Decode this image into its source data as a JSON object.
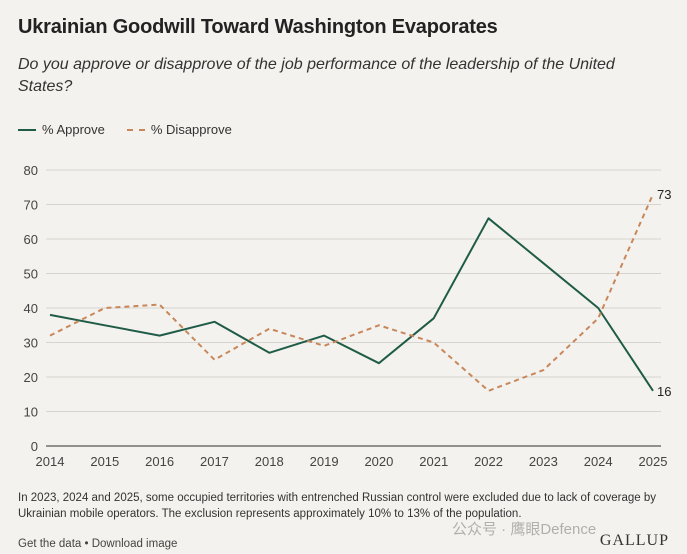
{
  "header": {
    "title": "Ukrainian Goodwill Toward Washington Evaporates",
    "subtitle": "Do you approve or disapprove of the job performance of the leadership of the United States?"
  },
  "legend": {
    "approve_label": "% Approve",
    "disapprove_label": "% Disapprove"
  },
  "chart_data": {
    "type": "line",
    "x": [
      "2014",
      "2015",
      "2016",
      "2017",
      "2018",
      "2019",
      "2020",
      "2021",
      "2022",
      "2023",
      "2024",
      "2025"
    ],
    "series": [
      {
        "name": "% Approve",
        "values": [
          38,
          35,
          32,
          36,
          27,
          32,
          24,
          37,
          66,
          53,
          40,
          16
        ],
        "color": "#1f5c48",
        "style": "solid"
      },
      {
        "name": "% Disapprove",
        "values": [
          32,
          40,
          41,
          25,
          34,
          29,
          35,
          30,
          16,
          22,
          37,
          73
        ],
        "color": "#c8875a",
        "style": "dashed"
      }
    ],
    "end_labels": [
      "16",
      "73"
    ],
    "ylim": [
      0,
      80
    ],
    "yticks": [
      0,
      10,
      20,
      30,
      40,
      50,
      60,
      70,
      80
    ],
    "grid": true,
    "legend_position": "top-left"
  },
  "footnote": "In 2023, 2024 and 2025, some occupied territories with entrenched Russian control were excluded due to lack of coverage by Ukrainian mobile operators. The exclusion represents approximately 10% to 13% of the population.",
  "links": {
    "get_data": "Get the data",
    "separator": " • ",
    "download": "Download image"
  },
  "brand": "GALLUP",
  "watermark": "公众号 · 鹰眼Defence"
}
